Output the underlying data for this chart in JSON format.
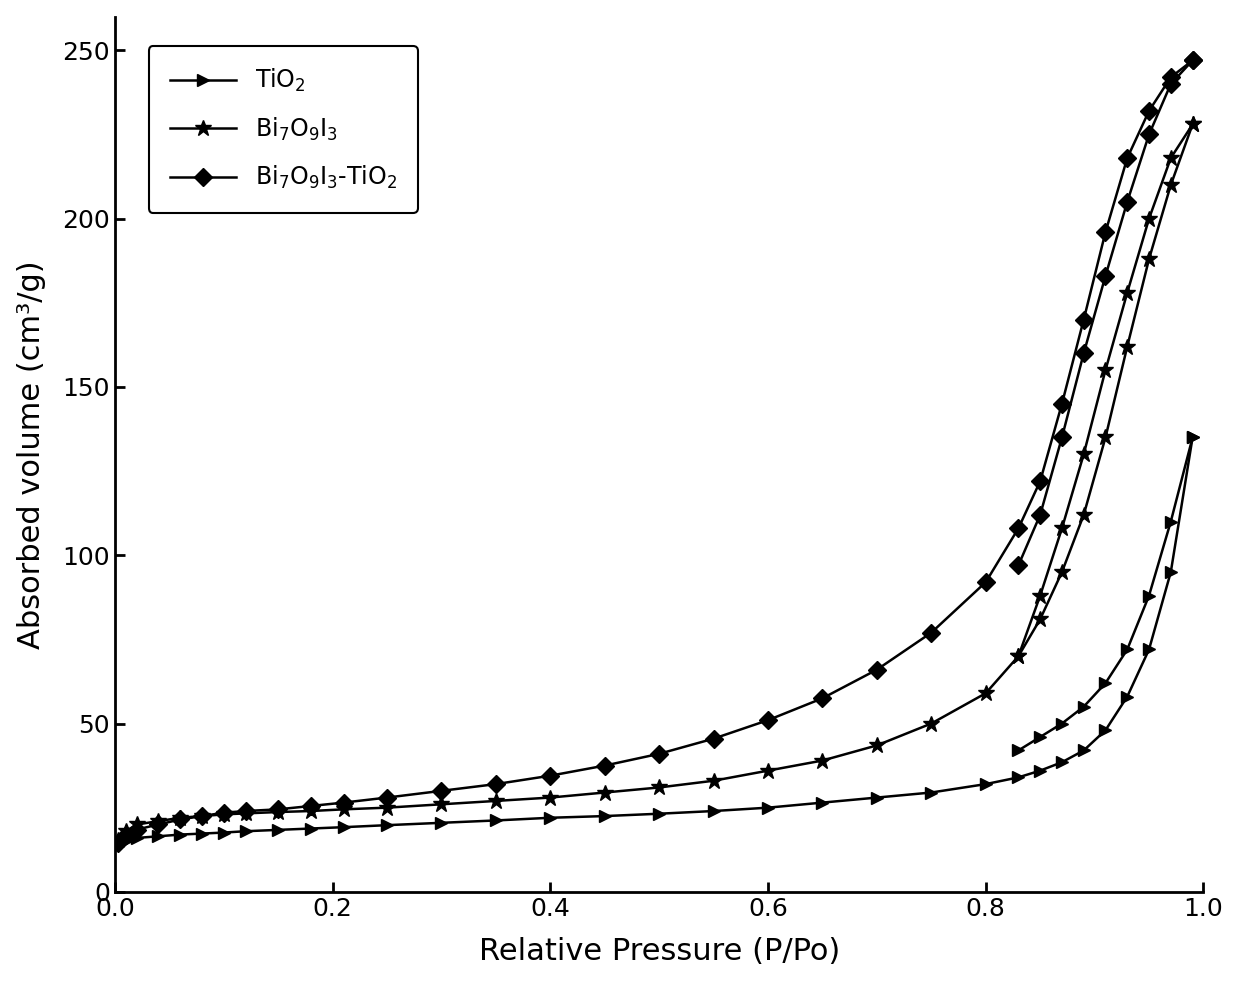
{
  "title": "",
  "xlabel": "Relative Pressure (P/Po)",
  "ylabel": "Absorbed volume (cm³/g)",
  "xlim": [
    0.0,
    1.0
  ],
  "ylim": [
    0,
    260
  ],
  "yticks": [
    0,
    50,
    100,
    150,
    200,
    250
  ],
  "xticks": [
    0.0,
    0.2,
    0.4,
    0.6,
    0.8,
    1.0
  ],
  "background_color": "#ffffff",
  "line_color": "#000000",
  "TiO2_x": [
    0.003,
    0.01,
    0.02,
    0.04,
    0.06,
    0.08,
    0.1,
    0.12,
    0.15,
    0.18,
    0.21,
    0.25,
    0.3,
    0.35,
    0.4,
    0.45,
    0.5,
    0.55,
    0.6,
    0.65,
    0.7,
    0.75,
    0.8,
    0.83,
    0.85,
    0.87,
    0.89,
    0.91,
    0.93,
    0.95,
    0.97,
    0.99
  ],
  "TiO2_y": [
    13.5,
    15.0,
    16.0,
    16.5,
    17.0,
    17.3,
    17.6,
    18.0,
    18.4,
    18.8,
    19.2,
    19.8,
    20.5,
    21.2,
    22.0,
    22.5,
    23.2,
    24.0,
    25.0,
    26.5,
    28.0,
    29.5,
    32.0,
    34.0,
    36.0,
    38.5,
    42.0,
    48.0,
    58.0,
    72.0,
    95.0,
    135.0
  ],
  "Bi7O9I3_x": [
    0.003,
    0.01,
    0.02,
    0.04,
    0.06,
    0.08,
    0.1,
    0.12,
    0.15,
    0.18,
    0.21,
    0.25,
    0.3,
    0.35,
    0.4,
    0.45,
    0.5,
    0.55,
    0.6,
    0.65,
    0.7,
    0.75,
    0.8,
    0.83,
    0.85,
    0.87,
    0.89,
    0.91,
    0.93,
    0.95,
    0.97,
    0.99
  ],
  "Bi7O9I3_y": [
    15.5,
    18.0,
    20.0,
    21.0,
    22.0,
    22.5,
    23.0,
    23.3,
    23.7,
    24.0,
    24.5,
    25.0,
    26.0,
    27.0,
    28.0,
    29.5,
    31.0,
    33.0,
    36.0,
    39.0,
    43.5,
    50.0,
    59.0,
    70.0,
    81.0,
    95.0,
    112.0,
    135.0,
    162.0,
    188.0,
    210.0,
    228.0
  ],
  "BiTiO2_x": [
    0.003,
    0.01,
    0.02,
    0.04,
    0.06,
    0.08,
    0.1,
    0.12,
    0.15,
    0.18,
    0.21,
    0.25,
    0.3,
    0.35,
    0.4,
    0.45,
    0.5,
    0.55,
    0.6,
    0.65,
    0.7,
    0.75,
    0.8,
    0.83,
    0.85,
    0.87,
    0.89,
    0.91,
    0.93,
    0.95,
    0.97,
    0.99
  ],
  "BiTiO2_y": [
    14.5,
    17.0,
    18.5,
    20.0,
    21.5,
    22.5,
    23.5,
    24.0,
    24.5,
    25.5,
    26.5,
    28.0,
    30.0,
    32.0,
    34.5,
    37.5,
    41.0,
    45.5,
    51.0,
    57.5,
    66.0,
    77.0,
    92.0,
    108.0,
    122.0,
    145.0,
    170.0,
    196.0,
    218.0,
    232.0,
    242.0,
    247.0
  ],
  "TiO2_desorb_x": [
    0.99,
    0.97,
    0.95,
    0.93,
    0.91,
    0.89,
    0.87,
    0.85,
    0.83
  ],
  "TiO2_desorb_y": [
    135.0,
    110.0,
    88.0,
    72.0,
    62.0,
    55.0,
    50.0,
    46.0,
    42.0
  ],
  "Bi7O9I3_desorb_x": [
    0.99,
    0.97,
    0.95,
    0.93,
    0.91,
    0.89,
    0.87,
    0.85,
    0.83
  ],
  "Bi7O9I3_desorb_y": [
    228.0,
    218.0,
    200.0,
    178.0,
    155.0,
    130.0,
    108.0,
    88.0,
    70.0
  ],
  "BiTiO2_desorb_x": [
    0.99,
    0.97,
    0.95,
    0.93,
    0.91,
    0.89,
    0.87,
    0.85,
    0.83
  ],
  "BiTiO2_desorb_y": [
    247.0,
    240.0,
    225.0,
    205.0,
    183.0,
    160.0,
    135.0,
    112.0,
    97.0
  ]
}
